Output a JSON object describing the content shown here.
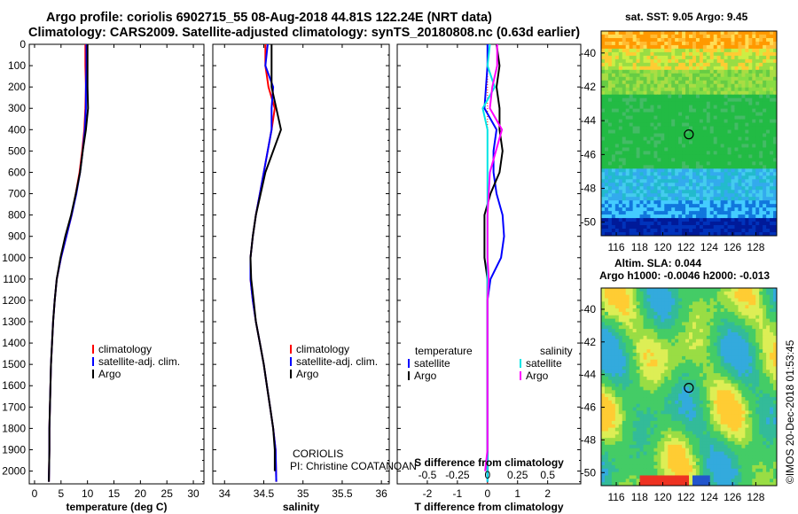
{
  "header": {
    "line1": "Argo profile: coriolis 6902715_55 08-Aug-2018 44.81S 122.24E (NRT data)",
    "line2": "Climatology: CARS2009. Satellite-adjusted climatology: synTS_20180808.nc (0.63d earlier)"
  },
  "map_sst": {
    "title": "sat. SST: 9.05 Argo: 9.45"
  },
  "map_sla": {
    "title1": "Altim. SLA: 0.044",
    "title2": "Argo h1000: -0.0046 h2000: -0.013"
  },
  "credit": "©IMOS 20-Dec-2018 01:53:45",
  "colors": {
    "climatology": "#ff0000",
    "satellite": "#0000ff",
    "argo": "#000000",
    "sal_satellite": "#00e5e5",
    "sal_argo": "#ff00ff"
  },
  "annotation": {
    "line1": "CORIOLIS",
    "line2": "PI: Christine COATANOAN"
  },
  "chart_data": [
    {
      "type": "line",
      "title": "",
      "xlabel": "temperature (deg C)",
      "ylabel": "",
      "xlim": [
        -1,
        32
      ],
      "ylim": [
        2060,
        0
      ],
      "xticks": [
        0,
        5,
        10,
        15,
        20,
        25,
        30
      ],
      "yticks": [
        0,
        100,
        200,
        300,
        400,
        500,
        600,
        700,
        800,
        900,
        1000,
        1100,
        1200,
        1300,
        1400,
        1500,
        1600,
        1700,
        1800,
        1900,
        2000
      ],
      "yticklabels": [
        "0",
        "100",
        "200",
        "300",
        "400",
        "500",
        "600",
        "700",
        "800",
        "900",
        "1000",
        "1100",
        "1200",
        "1300",
        "1400",
        "1500",
        "1600",
        "1700",
        "1800",
        "1900",
        "2000"
      ],
      "legend": [
        "climatology",
        "satellite-adj. clim.",
        "Argo"
      ],
      "series": [
        {
          "name": "climatology",
          "x": [
            9.6,
            9.6,
            9.7,
            9.6,
            9.4,
            9.0,
            8.5,
            7.8,
            7.0,
            6.0,
            5.0,
            4.2,
            3.8,
            3.5,
            3.3,
            3.1,
            3.0,
            2.9,
            2.8,
            2.8,
            2.7
          ],
          "y": [
            0,
            100,
            200,
            300,
            400,
            500,
            600,
            700,
            800,
            900,
            1000,
            1100,
            1200,
            1300,
            1400,
            1500,
            1600,
            1700,
            1800,
            1900,
            2050
          ]
        },
        {
          "name": "satellite-adj. clim.",
          "x": [
            9.8,
            9.8,
            9.7,
            9.7,
            9.5,
            9.1,
            8.6,
            7.9,
            7.0,
            6.0,
            5.0,
            4.2,
            3.8,
            3.5,
            3.3,
            3.1,
            3.0,
            2.9,
            2.8,
            2.8,
            2.7
          ],
          "y": [
            0,
            100,
            200,
            300,
            400,
            500,
            600,
            700,
            800,
            900,
            1000,
            1100,
            1200,
            1300,
            1400,
            1500,
            1600,
            1700,
            1800,
            1900,
            2050
          ]
        },
        {
          "name": "Argo",
          "x": [
            10.0,
            10.0,
            10.0,
            10.1,
            9.7,
            9.1,
            8.6,
            7.8,
            6.9,
            5.8,
            4.9,
            4.2,
            3.8,
            3.5,
            3.3,
            3.1,
            3.0,
            2.9,
            2.8,
            2.8,
            2.7
          ],
          "y": [
            0,
            100,
            200,
            300,
            400,
            500,
            600,
            700,
            800,
            900,
            1000,
            1100,
            1200,
            1300,
            1400,
            1500,
            1600,
            1700,
            1800,
            1900,
            2050
          ]
        }
      ]
    },
    {
      "type": "line",
      "title": "",
      "xlabel": "salinity",
      "ylabel": "",
      "xlim": [
        33.85,
        36.1
      ],
      "ylim": [
        2060,
        0
      ],
      "xticks": [
        34,
        34.5,
        35,
        35.5,
        36
      ],
      "legend": [
        "climatology",
        "satellite-adj. clim.",
        "Argo"
      ],
      "series": [
        {
          "name": "climatology",
          "x": [
            34.52,
            34.52,
            34.56,
            34.64,
            34.6,
            34.55,
            34.5,
            34.45,
            34.4,
            34.36,
            34.33,
            34.33,
            34.36,
            34.4,
            34.45,
            34.5,
            34.54,
            34.58,
            34.62,
            34.65,
            34.66
          ],
          "y": [
            0,
            100,
            200,
            300,
            400,
            500,
            600,
            700,
            800,
            900,
            1000,
            1100,
            1200,
            1300,
            1400,
            1500,
            1600,
            1700,
            1800,
            1900,
            2050
          ]
        },
        {
          "name": "satellite-adj. clim.",
          "x": [
            34.55,
            34.52,
            34.62,
            34.6,
            34.6,
            34.55,
            34.5,
            34.45,
            34.4,
            34.36,
            34.33,
            34.33,
            34.36,
            34.4,
            34.45,
            34.5,
            34.54,
            34.58,
            34.62,
            34.65,
            34.66
          ],
          "y": [
            0,
            100,
            200,
            300,
            400,
            500,
            600,
            700,
            800,
            900,
            1000,
            1100,
            1200,
            1300,
            1400,
            1500,
            1600,
            1700,
            1800,
            1900,
            2050
          ]
        },
        {
          "name": "Argo",
          "x": [
            34.6,
            34.6,
            34.6,
            34.66,
            34.72,
            34.62,
            34.52,
            34.46,
            34.4,
            34.36,
            34.33,
            34.34,
            34.37,
            34.4,
            34.45,
            34.5,
            34.54,
            34.58,
            34.62,
            34.64,
            34.64
          ],
          "y": [
            0,
            100,
            200,
            300,
            400,
            500,
            600,
            700,
            800,
            900,
            1000,
            1100,
            1200,
            1300,
            1400,
            1500,
            1600,
            1700,
            1800,
            1900,
            2000
          ]
        }
      ]
    },
    {
      "type": "line",
      "title": "",
      "xlabel": "T difference from climatology",
      "xlabel2": "S difference from climatology",
      "ylabel": "",
      "xlim": [
        -3,
        3.1
      ],
      "ylim": [
        2060,
        0
      ],
      "xticks": [
        -2,
        -1,
        0,
        1,
        2
      ],
      "xticklabels_top": [
        "-0.5",
        "-0.25",
        "0",
        "0.25",
        "0.5"
      ],
      "legend_left_title": "temperature",
      "legend_right_title": "salinity",
      "legend": [
        "satellite",
        "Argo",
        "satellite",
        "Argo"
      ],
      "series": [
        {
          "name": "T satellite",
          "x": [
            0.0,
            0.0,
            -0.05,
            -0.1,
            0.3,
            0.2,
            0.2,
            0.3,
            0.5,
            0.55,
            0.45,
            0.1,
            0,
            0,
            0,
            0,
            0,
            0,
            0,
            0,
            0
          ],
          "y": [
            0,
            100,
            200,
            300,
            400,
            500,
            600,
            700,
            800,
            900,
            1000,
            1100,
            1200,
            1300,
            1400,
            1500,
            1600,
            1700,
            1800,
            1900,
            2050
          ]
        },
        {
          "name": "T Argo",
          "x": [
            0.3,
            0.4,
            0.3,
            0.4,
            0.4,
            0.5,
            0.4,
            0.1,
            -0.1,
            -0.1,
            -0.1,
            0.0,
            0,
            0,
            0,
            0,
            0,
            0,
            0,
            0,
            0
          ],
          "y": [
            0,
            100,
            200,
            300,
            400,
            500,
            600,
            700,
            800,
            900,
            1000,
            1100,
            1200,
            1300,
            1400,
            1500,
            1600,
            1700,
            1800,
            1900,
            2000
          ]
        },
        {
          "name": "S satellite",
          "x": [
            0.02,
            0.0,
            0.06,
            -0.04,
            0.0,
            0.0,
            0.0,
            0.0,
            0.0,
            0.0,
            0.0,
            0.0,
            0,
            0,
            0,
            0,
            0,
            0,
            0,
            0,
            0
          ],
          "y": [
            0,
            100,
            200,
            300,
            400,
            500,
            600,
            700,
            800,
            900,
            1000,
            1100,
            1200,
            1300,
            1400,
            1500,
            1600,
            1700,
            1800,
            1900,
            2050
          ]
        },
        {
          "name": "S Argo",
          "x": [
            0.08,
            0.08,
            0.04,
            0.02,
            0.12,
            0.07,
            0.02,
            0.01,
            0.0,
            0.0,
            0.0,
            0.01,
            0,
            0,
            0,
            0,
            0,
            0,
            0,
            0,
            -0.02
          ],
          "y": [
            0,
            100,
            200,
            300,
            400,
            500,
            600,
            700,
            800,
            900,
            1000,
            1100,
            1200,
            1300,
            1400,
            1500,
            1600,
            1700,
            1800,
            1900,
            2000
          ]
        }
      ]
    },
    {
      "type": "heatmap",
      "title": "sat. SST: 9.05 Argo: 9.45",
      "xticks": [
        116,
        118,
        120,
        122,
        124,
        126,
        128
      ],
      "yticks": [
        -40,
        -42,
        -44,
        -46,
        -48,
        -50
      ],
      "xlim": [
        114.7,
        129.8
      ],
      "ylim": [
        -50.8,
        -38.7
      ],
      "marker": {
        "lon": 122.24,
        "lat": -44.81
      }
    },
    {
      "type": "heatmap",
      "title": "Altim. SLA: 0.044",
      "xticks": [
        116,
        118,
        120,
        122,
        124,
        126,
        128
      ],
      "yticks": [
        -40,
        -42,
        -44,
        -46,
        -48,
        -50
      ],
      "xlim": [
        114.7,
        129.8
      ],
      "ylim": [
        -50.8,
        -38.7
      ],
      "marker": {
        "lon": 122.24,
        "lat": -44.81
      }
    }
  ]
}
